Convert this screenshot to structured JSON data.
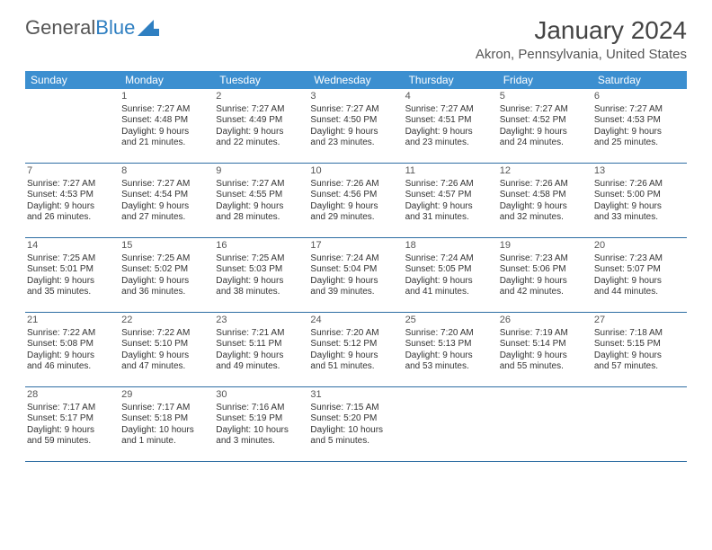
{
  "logo": {
    "text1": "General",
    "text2": "Blue"
  },
  "title": "January 2024",
  "location": "Akron, Pennsylvania, United States",
  "colors": {
    "header_bg": "#3c8fd0",
    "header_text": "#ffffff",
    "rule": "#2e6ea3",
    "body_text": "#333333",
    "logo_gray": "#555555",
    "logo_blue": "#2f7fc1",
    "page_bg": "#ffffff"
  },
  "typography": {
    "title_fontsize": 28,
    "location_fontsize": 15,
    "dow_fontsize": 12,
    "daynum_fontsize": 11,
    "body_fontsize": 10
  },
  "dow": [
    "Sunday",
    "Monday",
    "Tuesday",
    "Wednesday",
    "Thursday",
    "Friday",
    "Saturday"
  ],
  "weeks": [
    [
      null,
      {
        "n": "1",
        "sr": "Sunrise: 7:27 AM",
        "ss": "Sunset: 4:48 PM",
        "d1": "Daylight: 9 hours",
        "d2": "and 21 minutes."
      },
      {
        "n": "2",
        "sr": "Sunrise: 7:27 AM",
        "ss": "Sunset: 4:49 PM",
        "d1": "Daylight: 9 hours",
        "d2": "and 22 minutes."
      },
      {
        "n": "3",
        "sr": "Sunrise: 7:27 AM",
        "ss": "Sunset: 4:50 PM",
        "d1": "Daylight: 9 hours",
        "d2": "and 23 minutes."
      },
      {
        "n": "4",
        "sr": "Sunrise: 7:27 AM",
        "ss": "Sunset: 4:51 PM",
        "d1": "Daylight: 9 hours",
        "d2": "and 23 minutes."
      },
      {
        "n": "5",
        "sr": "Sunrise: 7:27 AM",
        "ss": "Sunset: 4:52 PM",
        "d1": "Daylight: 9 hours",
        "d2": "and 24 minutes."
      },
      {
        "n": "6",
        "sr": "Sunrise: 7:27 AM",
        "ss": "Sunset: 4:53 PM",
        "d1": "Daylight: 9 hours",
        "d2": "and 25 minutes."
      }
    ],
    [
      {
        "n": "7",
        "sr": "Sunrise: 7:27 AM",
        "ss": "Sunset: 4:53 PM",
        "d1": "Daylight: 9 hours",
        "d2": "and 26 minutes."
      },
      {
        "n": "8",
        "sr": "Sunrise: 7:27 AM",
        "ss": "Sunset: 4:54 PM",
        "d1": "Daylight: 9 hours",
        "d2": "and 27 minutes."
      },
      {
        "n": "9",
        "sr": "Sunrise: 7:27 AM",
        "ss": "Sunset: 4:55 PM",
        "d1": "Daylight: 9 hours",
        "d2": "and 28 minutes."
      },
      {
        "n": "10",
        "sr": "Sunrise: 7:26 AM",
        "ss": "Sunset: 4:56 PM",
        "d1": "Daylight: 9 hours",
        "d2": "and 29 minutes."
      },
      {
        "n": "11",
        "sr": "Sunrise: 7:26 AM",
        "ss": "Sunset: 4:57 PM",
        "d1": "Daylight: 9 hours",
        "d2": "and 31 minutes."
      },
      {
        "n": "12",
        "sr": "Sunrise: 7:26 AM",
        "ss": "Sunset: 4:58 PM",
        "d1": "Daylight: 9 hours",
        "d2": "and 32 minutes."
      },
      {
        "n": "13",
        "sr": "Sunrise: 7:26 AM",
        "ss": "Sunset: 5:00 PM",
        "d1": "Daylight: 9 hours",
        "d2": "and 33 minutes."
      }
    ],
    [
      {
        "n": "14",
        "sr": "Sunrise: 7:25 AM",
        "ss": "Sunset: 5:01 PM",
        "d1": "Daylight: 9 hours",
        "d2": "and 35 minutes."
      },
      {
        "n": "15",
        "sr": "Sunrise: 7:25 AM",
        "ss": "Sunset: 5:02 PM",
        "d1": "Daylight: 9 hours",
        "d2": "and 36 minutes."
      },
      {
        "n": "16",
        "sr": "Sunrise: 7:25 AM",
        "ss": "Sunset: 5:03 PM",
        "d1": "Daylight: 9 hours",
        "d2": "and 38 minutes."
      },
      {
        "n": "17",
        "sr": "Sunrise: 7:24 AM",
        "ss": "Sunset: 5:04 PM",
        "d1": "Daylight: 9 hours",
        "d2": "and 39 minutes."
      },
      {
        "n": "18",
        "sr": "Sunrise: 7:24 AM",
        "ss": "Sunset: 5:05 PM",
        "d1": "Daylight: 9 hours",
        "d2": "and 41 minutes."
      },
      {
        "n": "19",
        "sr": "Sunrise: 7:23 AM",
        "ss": "Sunset: 5:06 PM",
        "d1": "Daylight: 9 hours",
        "d2": "and 42 minutes."
      },
      {
        "n": "20",
        "sr": "Sunrise: 7:23 AM",
        "ss": "Sunset: 5:07 PM",
        "d1": "Daylight: 9 hours",
        "d2": "and 44 minutes."
      }
    ],
    [
      {
        "n": "21",
        "sr": "Sunrise: 7:22 AM",
        "ss": "Sunset: 5:08 PM",
        "d1": "Daylight: 9 hours",
        "d2": "and 46 minutes."
      },
      {
        "n": "22",
        "sr": "Sunrise: 7:22 AM",
        "ss": "Sunset: 5:10 PM",
        "d1": "Daylight: 9 hours",
        "d2": "and 47 minutes."
      },
      {
        "n": "23",
        "sr": "Sunrise: 7:21 AM",
        "ss": "Sunset: 5:11 PM",
        "d1": "Daylight: 9 hours",
        "d2": "and 49 minutes."
      },
      {
        "n": "24",
        "sr": "Sunrise: 7:20 AM",
        "ss": "Sunset: 5:12 PM",
        "d1": "Daylight: 9 hours",
        "d2": "and 51 minutes."
      },
      {
        "n": "25",
        "sr": "Sunrise: 7:20 AM",
        "ss": "Sunset: 5:13 PM",
        "d1": "Daylight: 9 hours",
        "d2": "and 53 minutes."
      },
      {
        "n": "26",
        "sr": "Sunrise: 7:19 AM",
        "ss": "Sunset: 5:14 PM",
        "d1": "Daylight: 9 hours",
        "d2": "and 55 minutes."
      },
      {
        "n": "27",
        "sr": "Sunrise: 7:18 AM",
        "ss": "Sunset: 5:15 PM",
        "d1": "Daylight: 9 hours",
        "d2": "and 57 minutes."
      }
    ],
    [
      {
        "n": "28",
        "sr": "Sunrise: 7:17 AM",
        "ss": "Sunset: 5:17 PM",
        "d1": "Daylight: 9 hours",
        "d2": "and 59 minutes."
      },
      {
        "n": "29",
        "sr": "Sunrise: 7:17 AM",
        "ss": "Sunset: 5:18 PM",
        "d1": "Daylight: 10 hours",
        "d2": "and 1 minute."
      },
      {
        "n": "30",
        "sr": "Sunrise: 7:16 AM",
        "ss": "Sunset: 5:19 PM",
        "d1": "Daylight: 10 hours",
        "d2": "and 3 minutes."
      },
      {
        "n": "31",
        "sr": "Sunrise: 7:15 AM",
        "ss": "Sunset: 5:20 PM",
        "d1": "Daylight: 10 hours",
        "d2": "and 5 minutes."
      },
      null,
      null,
      null
    ]
  ]
}
